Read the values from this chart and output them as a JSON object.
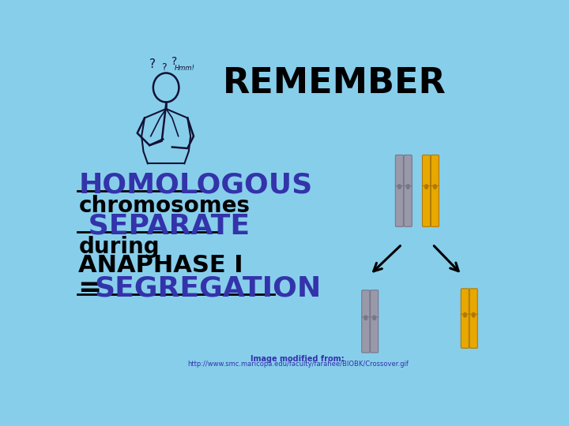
{
  "bg_color": "#87CEEB",
  "title": "REMEMBER",
  "title_fontsize": 32,
  "title_color": "black",
  "title_weight": "bold",
  "line1": "HOMOLOGOUS",
  "line1_color": "#3333AA",
  "line1_fontsize": 26,
  "line1_weight": "bold",
  "line2": "chromosomes",
  "line2_color": "black",
  "line2_fontsize": 20,
  "line2_weight": "bold",
  "line3": " SEPARATE",
  "line3_color": "#3333AA",
  "line3_fontsize": 26,
  "line3_weight": "bold",
  "line4": "during",
  "line4_color": "black",
  "line4_fontsize": 20,
  "line4_weight": "bold",
  "line5": "ANAPHASE I",
  "line5_color": "black",
  "line5_fontsize": 22,
  "line5_weight": "bold",
  "line6_prefix": "= ",
  "line6_prefix_color": "black",
  "line6": "SEGREGATION",
  "line6_color": "#3333AA",
  "line6_fontsize": 26,
  "line6_weight": "bold",
  "footnote": "Image modified from:",
  "footnote_url": "http://www.smc.maricopa.edu/faculty/farahee/BIOBK/Crossover.gif",
  "footnote_color": "#3333AA",
  "footnote_fontsize": 7,
  "chr_gray_color": "#9999AA",
  "chr_gray_dark": "#777788",
  "chr_orange_color": "#E8A800",
  "chr_orange_dark": "#B07800"
}
